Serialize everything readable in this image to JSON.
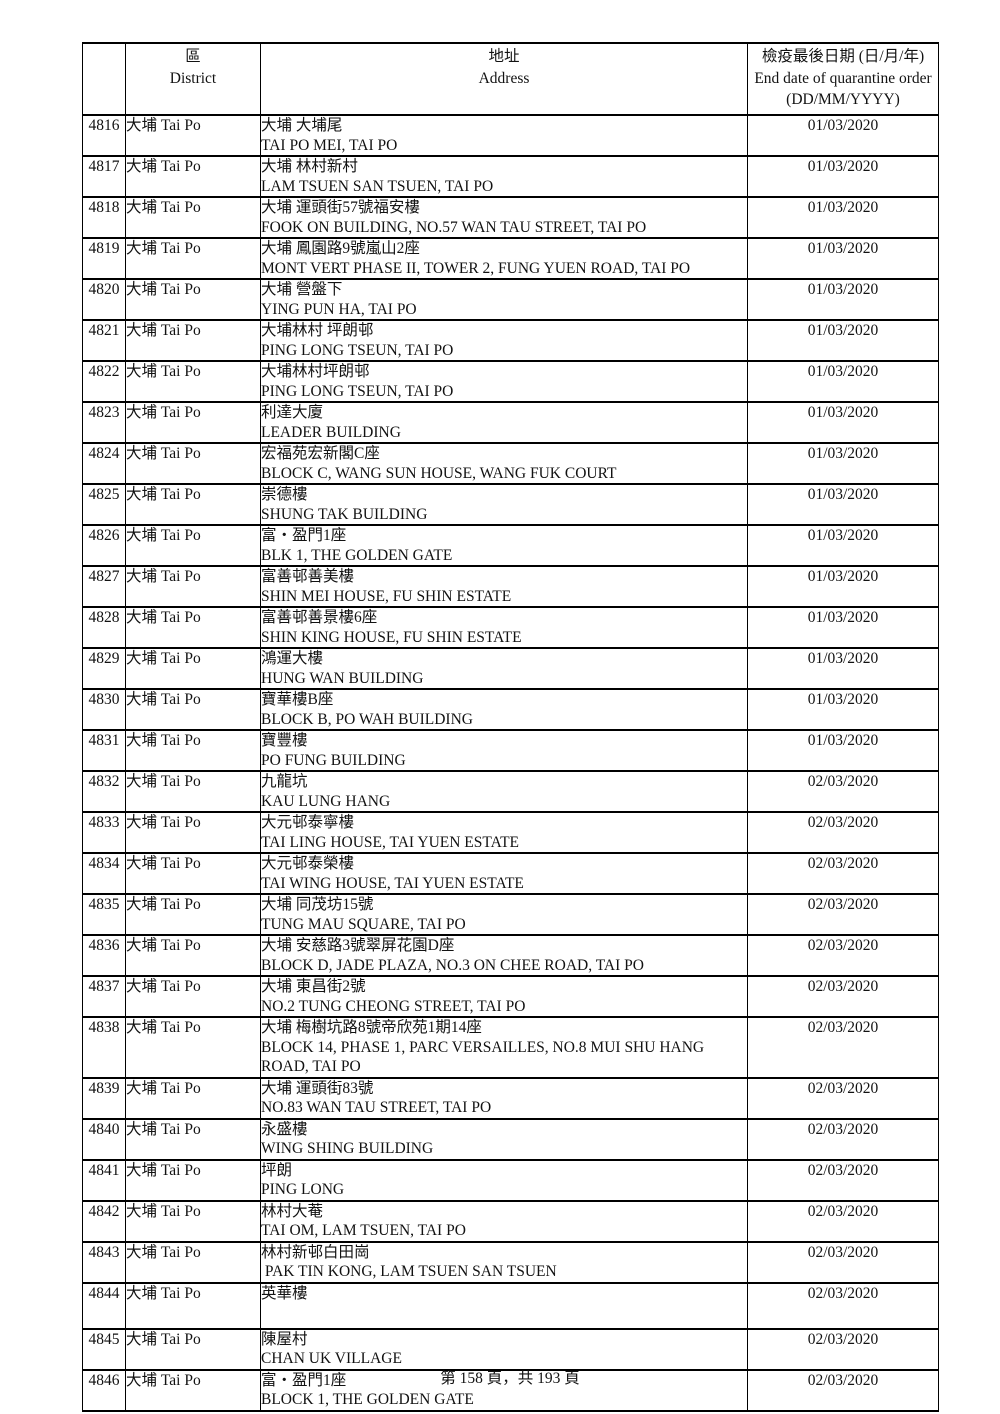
{
  "header": {
    "district_zh": "區",
    "district_en": "District",
    "address_zh": "地址",
    "address_en": "Address",
    "date_zh": "檢疫最後日期 (日/月/年)",
    "date_en": "End date of quarantine order",
    "date_fmt": "(DD/MM/YYYY)"
  },
  "rows": [
    {
      "id": "4816",
      "district": "大埔 Tai Po",
      "address_zh": "大埔 大埔尾",
      "address_en": "TAI PO MEI, TAI PO",
      "date": "01/03/2020"
    },
    {
      "id": "4817",
      "district": "大埔 Tai Po",
      "address_zh": "大埔 林村新村",
      "address_en": "LAM TSUEN SAN TSUEN, TAI PO",
      "date": "01/03/2020"
    },
    {
      "id": "4818",
      "district": "大埔 Tai Po",
      "address_zh": "大埔 運頭街57號福安樓",
      "address_en": "FOOK ON BUILDING, NO.57 WAN TAU STREET, TAI PO",
      "date": "01/03/2020"
    },
    {
      "id": "4819",
      "district": "大埔 Tai Po",
      "address_zh": "大埔 鳳園路9號嵐山2座",
      "address_en": "MONT VERT PHASE II, TOWER 2, FUNG YUEN ROAD, TAI PO",
      "date": "01/03/2020"
    },
    {
      "id": "4820",
      "district": "大埔 Tai Po",
      "address_zh": "大埔 營盤下",
      "address_en": "YING PUN HA, TAI PO",
      "date": "01/03/2020"
    },
    {
      "id": "4821",
      "district": "大埔 Tai Po",
      "address_zh": "大埔林村 坪朗邨",
      "address_en": "PING LONG TSEUN, TAI PO",
      "date": "01/03/2020"
    },
    {
      "id": "4822",
      "district": "大埔 Tai Po",
      "address_zh": "大埔林村坪朗邨",
      "address_en": "PING LONG TSEUN, TAI PO",
      "date": "01/03/2020"
    },
    {
      "id": "4823",
      "district": "大埔 Tai Po",
      "address_zh": "利達大廈",
      "address_en": "LEADER BUILDING",
      "date": "01/03/2020"
    },
    {
      "id": "4824",
      "district": "大埔 Tai Po",
      "address_zh": "宏福苑宏新閣C座",
      "address_en": "BLOCK C, WANG SUN HOUSE, WANG FUK COURT",
      "date": "01/03/2020"
    },
    {
      "id": "4825",
      "district": "大埔 Tai Po",
      "address_zh": "崇德樓",
      "address_en": "SHUNG TAK BUILDING",
      "date": "01/03/2020"
    },
    {
      "id": "4826",
      "district": "大埔 Tai Po",
      "address_zh": "富・盈門1座",
      "address_en": "BLK 1, THE GOLDEN GATE",
      "date": "01/03/2020"
    },
    {
      "id": "4827",
      "district": "大埔 Tai Po",
      "address_zh": "富善邨善美樓",
      "address_en": "SHIN MEI HOUSE, FU SHIN ESTATE",
      "date": "01/03/2020"
    },
    {
      "id": "4828",
      "district": "大埔 Tai Po",
      "address_zh": "富善邨善景樓6座",
      "address_en": "SHIN KING HOUSE, FU SHIN ESTATE",
      "date": "01/03/2020"
    },
    {
      "id": "4829",
      "district": "大埔 Tai Po",
      "address_zh": "鴻運大樓",
      "address_en": "HUNG WAN BUILDING",
      "date": "01/03/2020"
    },
    {
      "id": "4830",
      "district": "大埔 Tai Po",
      "address_zh": "寶華樓B座",
      "address_en": "BLOCK B, PO WAH BUILDING",
      "date": "01/03/2020"
    },
    {
      "id": "4831",
      "district": "大埔 Tai Po",
      "address_zh": "寶豐樓",
      "address_en": "PO FUNG BUILDING",
      "date": "01/03/2020"
    },
    {
      "id": "4832",
      "district": "大埔 Tai Po",
      "address_zh": "九龍坑",
      "address_en": "KAU LUNG HANG",
      "date": "02/03/2020"
    },
    {
      "id": "4833",
      "district": "大埔 Tai Po",
      "address_zh": "大元邨泰寧樓",
      "address_en": "TAI LING HOUSE, TAI YUEN ESTATE",
      "date": "02/03/2020"
    },
    {
      "id": "4834",
      "district": "大埔 Tai Po",
      "address_zh": "大元邨泰榮樓",
      "address_en": "TAI WING HOUSE, TAI YUEN ESTATE",
      "date": "02/03/2020"
    },
    {
      "id": "4835",
      "district": "大埔 Tai Po",
      "address_zh": "大埔 同茂坊15號",
      "address_en": "TUNG MAU SQUARE, TAI PO",
      "date": "02/03/2020"
    },
    {
      "id": "4836",
      "district": "大埔 Tai Po",
      "address_zh": "大埔 安慈路3號翠屏花園D座",
      "address_en": "BLOCK D, JADE PLAZA, NO.3 ON CHEE ROAD, TAI PO",
      "date": "02/03/2020"
    },
    {
      "id": "4837",
      "district": "大埔 Tai Po",
      "address_zh": "大埔 東昌街2號",
      "address_en": "NO.2 TUNG CHEONG STREET, TAI PO",
      "date": "02/03/2020"
    },
    {
      "id": "4838",
      "district": "大埔 Tai Po",
      "address_zh": "大埔 梅樹坑路8號帝欣苑1期14座",
      "address_en": "BLOCK 14, PHASE 1, PARC VERSAILLES, NO.8 MUI SHU HANG ROAD, TAI PO",
      "date": "02/03/2020"
    },
    {
      "id": "4839",
      "district": "大埔 Tai Po",
      "address_zh": "大埔 運頭街83號",
      "address_en": "NO.83 WAN TAU STREET, TAI PO",
      "date": "02/03/2020"
    },
    {
      "id": "4840",
      "district": "大埔 Tai Po",
      "address_zh": "永盛樓",
      "address_en": "WING SHING BUILDING",
      "date": "02/03/2020"
    },
    {
      "id": "4841",
      "district": "大埔 Tai Po",
      "address_zh": "坪朗",
      "address_en": "PING LONG",
      "date": "02/03/2020"
    },
    {
      "id": "4842",
      "district": "大埔 Tai Po",
      "address_zh": "林村大菴",
      "address_en": "TAI OM, LAM TSUEN, TAI PO",
      "date": "02/03/2020"
    },
    {
      "id": "4843",
      "district": "大埔 Tai Po",
      "address_zh": "林村新邨白田崗",
      "address_en": " PAK TIN KONG, LAM TSUEN SAN TSUEN",
      "date": "02/03/2020"
    },
    {
      "id": "4844",
      "district": "大埔 Tai Po",
      "address_zh": "英華樓",
      "address_en": "",
      "date": "02/03/2020",
      "tall": true
    },
    {
      "id": "4845",
      "district": "大埔 Tai Po",
      "address_zh": "陳屋村",
      "address_en": "CHAN UK VILLAGE",
      "date": "02/03/2020"
    },
    {
      "id": "4846",
      "district": "大埔 Tai Po",
      "address_zh": "富・盈門1座",
      "address_en": "BLOCK 1, THE GOLDEN GATE",
      "date": "02/03/2020"
    }
  ],
  "footer": {
    "page_text": "第 158 頁，共 193 頁"
  }
}
